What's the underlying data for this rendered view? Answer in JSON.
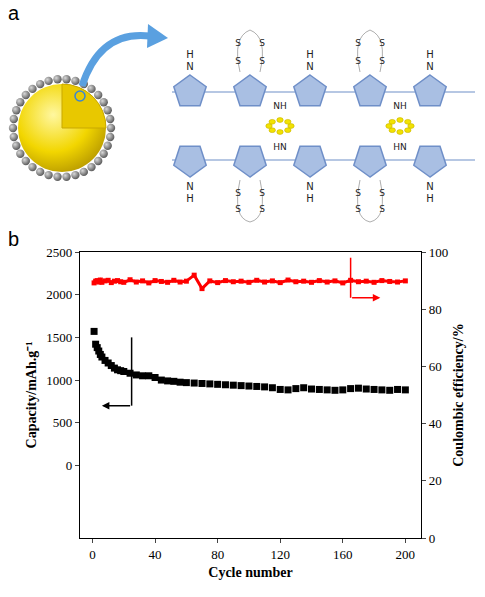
{
  "panel_labels": [
    "a",
    "b"
  ],
  "diagram": {
    "labels": {
      "h": "H",
      "n": "N",
      "s": "S",
      "nh": "NH",
      "hn": "HN"
    }
  },
  "chart_data": {
    "type": "scatter",
    "x_label": "Cycle number",
    "y_label": "Capacity/mAh.g⁻¹",
    "y2_label": "Coulombic efficiency/%",
    "x": [
      1,
      2,
      3,
      4,
      5,
      6,
      8,
      10,
      12,
      14,
      16,
      18,
      20,
      24,
      28,
      32,
      36,
      40,
      44,
      48,
      52,
      56,
      60,
      65,
      70,
      75,
      80,
      85,
      90,
      95,
      100,
      105,
      110,
      115,
      120,
      125,
      130,
      135,
      140,
      145,
      150,
      155,
      160,
      165,
      170,
      175,
      180,
      185,
      190,
      195,
      200
    ],
    "series": [
      {
        "color": "#000000",
        "marker": "square",
        "values": [
          1570,
          1420,
          1380,
          1340,
          1300,
          1270,
          1230,
          1200,
          1170,
          1140,
          1120,
          1110,
          1100,
          1080,
          1060,
          1050,
          1050,
          1030,
          1000,
          990,
          985,
          975,
          970,
          965,
          960,
          955,
          950,
          945,
          940,
          935,
          930,
          925,
          920,
          910,
          890,
          885,
          900,
          910,
          895,
          890,
          885,
          880,
          885,
          900,
          905,
          895,
          890,
          885,
          880,
          890,
          885
        ]
      },
      {
        "color": "#ff0000",
        "marker": "square",
        "line_style": "solid",
        "axis": "y2",
        "values": [
          89.2,
          89.8,
          90.0,
          89.5,
          90.2,
          89.4,
          89.9,
          90.1,
          89.3,
          89.8,
          90.0,
          89.6,
          89.4,
          90.3,
          89.5,
          89.9,
          89.2,
          90.0,
          89.7,
          89.4,
          90.1,
          89.5,
          89.8,
          91.9,
          87.2,
          89.9,
          89.3,
          90.0,
          89.6,
          89.8,
          89.4,
          90.1,
          89.5,
          89.9,
          89.3,
          90.2,
          89.6,
          89.8,
          89.4,
          90.0,
          89.5,
          89.9,
          89.2,
          90.1,
          89.6,
          89.8,
          89.4,
          90.0,
          89.7,
          89.5,
          89.9
        ]
      }
    ],
    "xlim": [
      -8,
      210
    ],
    "xticks": [
      0,
      40,
      80,
      120,
      160,
      200
    ],
    "ylim": [
      -850,
      2500
    ],
    "yticks": [
      0,
      500,
      1000,
      1500,
      2000,
      2500
    ],
    "y2lim": [
      0,
      100
    ],
    "y2ticks": [
      0,
      20,
      40,
      60,
      80,
      100
    ],
    "grid": false
  }
}
